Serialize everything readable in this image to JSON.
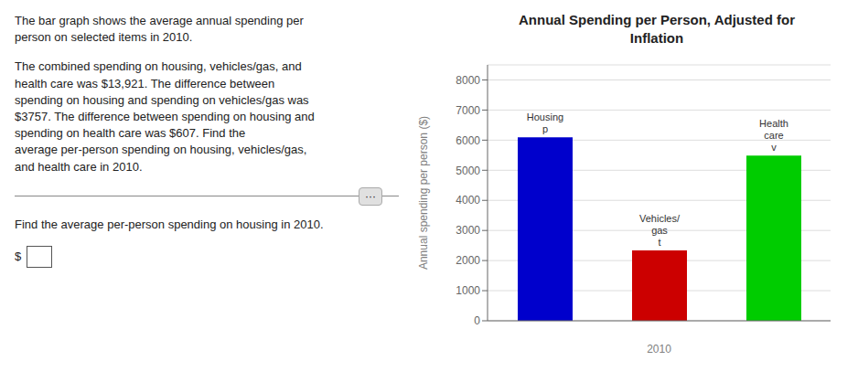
{
  "chart_data": {
    "type": "bar",
    "title": "Annual Spending per Person, Adjusted for\nInflation",
    "ylabel": "Annual spending per person ($)",
    "xlabel": "2010",
    "categories": [
      "Housing\np",
      "Vehicles/\ngas\nt",
      "Health\ncare\nv"
    ],
    "values": [
      6095,
      2338,
      5488
    ],
    "colors": [
      "#0000cc",
      "#cc0000",
      "#00cc00"
    ],
    "ylim": [
      0,
      8500
    ],
    "yticks": [
      0,
      1000,
      2000,
      3000,
      4000,
      5000,
      6000,
      7000,
      8000
    ],
    "grid": true,
    "tick_labels": "y",
    "annotations": [
      "The bar graph shows the average annual spending per\nperson on selected items in 2010.",
      "The combined spending on housing, vehicles/gas, and\nhealth care was $13,921. The difference between\nspending on housing and spending on vehicles/gas was\n$3757. The difference between spending on housing and\nspending on health care was $607. Find the\naverage per-person spending on housing, vehicles/gas,\nand health care in 2010.",
      "···",
      "Find the average per-person spending on housing in 2010.",
      "$"
    ]
  }
}
